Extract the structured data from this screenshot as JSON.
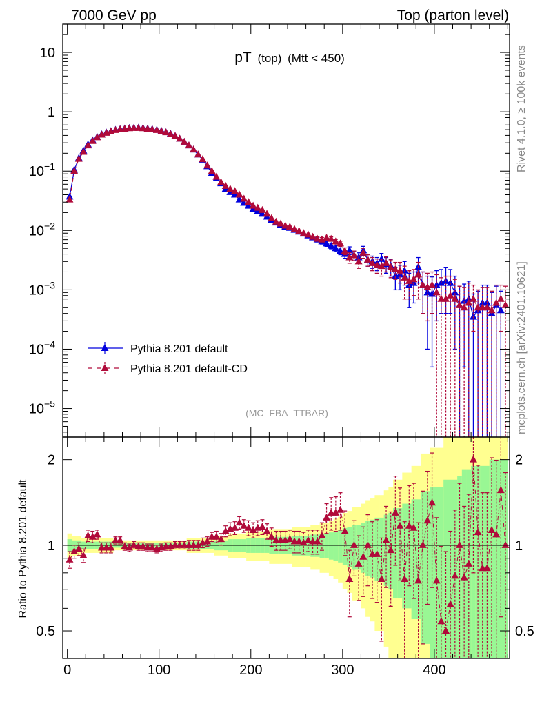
{
  "header": {
    "left": "7000 GeV pp",
    "right": "Top (parton level)"
  },
  "plot_title": {
    "main": "pT",
    "paren": "(top)",
    "cut": "(Mtt < 450)"
  },
  "side_labels": {
    "rivet": "Rivet 4.1.0, ≥ 100k events",
    "site": "mcplots.cern.ch [arXiv:2401.10621]"
  },
  "analysis_tag": "(MC_FBA_TTBAR)",
  "colors": {
    "blue": "#0000dd",
    "red": "#b00a3a",
    "band_inner": "#99f794",
    "band_outer": "#ffff90"
  },
  "chart_data": [
    {
      "type": "line",
      "panel": "main",
      "yscale": "log",
      "xlim": [
        -5,
        482
      ],
      "ylim": [
        3.3e-06,
        30
      ],
      "yticks": [
        {
          "value": 10,
          "label": "10"
        },
        {
          "value": 1,
          "label": "1"
        },
        {
          "value": 0.1,
          "base": "10",
          "exp": "−1"
        },
        {
          "value": 0.01,
          "base": "10",
          "exp": "−2"
        },
        {
          "value": 0.001,
          "base": "10",
          "exp": "−3"
        },
        {
          "value": 0.0001,
          "base": "10",
          "exp": "−4"
        },
        {
          "value": 1e-05,
          "base": "10",
          "exp": "−5"
        }
      ],
      "x": [
        2.5,
        7.5,
        12.5,
        17.5,
        22.5,
        27.5,
        32.5,
        37.5,
        42.5,
        47.5,
        52.5,
        57.5,
        62.5,
        67.5,
        72.5,
        77.5,
        82.5,
        87.5,
        92.5,
        97.5,
        102.5,
        107.5,
        112.5,
        117.5,
        122.5,
        127.5,
        132.5,
        137.5,
        142.5,
        147.5,
        152.5,
        157.5,
        162.5,
        167.5,
        172.5,
        177.5,
        182.5,
        187.5,
        192.5,
        197.5,
        202.5,
        207.5,
        212.5,
        217.5,
        222.5,
        227.5,
        232.5,
        237.5,
        242.5,
        247.5,
        252.5,
        257.5,
        262.5,
        267.5,
        272.5,
        277.5,
        282.5,
        287.5,
        292.5,
        297.5,
        302.5,
        307.5,
        312.5,
        317.5,
        322.5,
        327.5,
        332.5,
        337.5,
        342.5,
        347.5,
        352.5,
        357.5,
        362.5,
        367.5,
        372.5,
        377.5,
        382.5,
        387.5,
        392.5,
        397.5,
        402.5,
        407.5,
        412.5,
        417.5,
        422.5,
        427.5,
        432.5,
        437.5,
        442.5,
        447.5,
        452.5,
        457.5,
        462.5,
        467.5,
        472.5,
        477.5
      ],
      "series": [
        {
          "name": "Pythia 8.201 default",
          "style": "solid",
          "values": [
            0.037,
            0.105,
            0.165,
            0.22,
            0.28,
            0.33,
            0.375,
            0.415,
            0.445,
            0.47,
            0.495,
            0.51,
            0.52,
            0.53,
            0.535,
            0.535,
            0.53,
            0.52,
            0.51,
            0.495,
            0.475,
            0.45,
            0.425,
            0.39,
            0.35,
            0.31,
            0.27,
            0.23,
            0.19,
            0.155,
            0.12,
            0.093,
            0.075,
            0.062,
            0.05,
            0.044,
            0.04,
            0.033,
            0.029,
            0.026,
            0.023,
            0.021,
            0.019,
            0.017,
            0.015,
            0.0135,
            0.0125,
            0.0115,
            0.011,
            0.0102,
            0.0095,
            0.0088,
            0.0082,
            0.0076,
            0.007,
            0.0065,
            0.006,
            0.0055,
            0.005,
            0.0045,
            0.004,
            0.0046,
            0.0038,
            0.0035,
            0.0046,
            0.0032,
            0.003,
            0.0028,
            0.0033,
            0.0027,
            0.0025,
            0.0017,
            0.0018,
            0.0021,
            0.0012,
            0.0013,
            0.0024,
            0.0012,
            0.0009,
            0.00085,
            0.0012,
            0.0013,
            0.0014,
            0.0013,
            0.0009,
            0.00055,
            0.00065,
            0.0007,
            0.00035,
            0.00045,
            0.0006,
            0.0006,
            0.0004,
            0.00055,
            0.00045,
            null
          ],
          "errors": [
            0.002,
            0.004,
            0.005,
            0.006,
            0.007,
            0.008,
            0.008,
            0.009,
            0.009,
            0.009,
            0.01,
            0.01,
            0.01,
            0.01,
            0.01,
            0.01,
            0.01,
            0.01,
            0.01,
            0.01,
            0.009,
            0.009,
            0.009,
            0.008,
            0.008,
            0.007,
            0.007,
            0.006,
            0.005,
            0.004,
            0.004,
            0.003,
            0.003,
            0.002,
            0.002,
            0.002,
            0.002,
            0.0015,
            0.0014,
            0.0013,
            0.0012,
            0.0011,
            0.001,
            0.0009,
            0.0008,
            0.0008,
            0.0007,
            0.0007,
            0.0007,
            0.0007,
            0.0007,
            0.0006,
            0.0006,
            0.0006,
            0.0006,
            0.0006,
            0.0006,
            0.0006,
            0.0006,
            0.0006,
            0.0006,
            0.0007,
            0.0007,
            0.0007,
            0.0008,
            0.0007,
            0.0007,
            0.0007,
            0.0008,
            0.0008,
            0.0008,
            0.0007,
            0.0008,
            0.0009,
            0.0007,
            0.0007,
            0.0011,
            0.0008,
            0.0008,
            0.0008,
            0.0009,
            0.0009,
            0.001,
            0.0009,
            0.0008,
            0.0006,
            0.0006,
            0.0007,
            0.0005,
            0.0005,
            0.0006,
            0.0006,
            0.0005,
            0.0006,
            0.0005,
            null
          ]
        },
        {
          "name": "Pythia 8.201 default-CD",
          "style": "dash-dot",
          "values": [
            0.033,
            0.1,
            0.16,
            0.21,
            0.27,
            0.32,
            0.37,
            0.41,
            0.44,
            0.465,
            0.49,
            0.505,
            0.515,
            0.525,
            0.53,
            0.53,
            0.525,
            0.515,
            0.505,
            0.49,
            0.47,
            0.448,
            0.42,
            0.39,
            0.35,
            0.31,
            0.27,
            0.23,
            0.19,
            0.158,
            0.124,
            0.1,
            0.08,
            0.065,
            0.056,
            0.05,
            0.046,
            0.04,
            0.034,
            0.03,
            0.026,
            0.024,
            0.022,
            0.019,
            0.016,
            0.014,
            0.013,
            0.012,
            0.0115,
            0.0105,
            0.0098,
            0.009,
            0.0085,
            0.0078,
            0.0072,
            0.007,
            0.0075,
            0.0072,
            0.0065,
            0.006,
            0.0045,
            0.0035,
            0.0038,
            0.003,
            0.0042,
            0.0032,
            0.0028,
            0.0026,
            0.0025,
            0.0028,
            0.0024,
            0.0022,
            0.0021,
            0.0016,
            0.0014,
            0.0015,
            0.0018,
            0.0012,
            0.0011,
            0.0012,
            0.0009,
            0.0007,
            0.0007,
            0.0008,
            0.0007,
            0.00055,
            0.0005,
            0.0006,
            0.0007,
            0.0005,
            0.0005,
            0.0005,
            0.00045,
            0.0006,
            0.0007,
            0.00055
          ],
          "errors": [
            0.002,
            0.004,
            0.005,
            0.006,
            0.007,
            0.008,
            0.008,
            0.009,
            0.009,
            0.009,
            0.01,
            0.01,
            0.01,
            0.01,
            0.01,
            0.01,
            0.01,
            0.01,
            0.01,
            0.01,
            0.009,
            0.009,
            0.009,
            0.008,
            0.008,
            0.007,
            0.007,
            0.006,
            0.005,
            0.004,
            0.004,
            0.003,
            0.003,
            0.002,
            0.002,
            0.002,
            0.002,
            0.0015,
            0.0014,
            0.0013,
            0.0012,
            0.0011,
            0.001,
            0.0009,
            0.0008,
            0.0008,
            0.0007,
            0.0007,
            0.0007,
            0.0007,
            0.0007,
            0.0006,
            0.0006,
            0.0006,
            0.0006,
            0.0006,
            0.0006,
            0.0006,
            0.0006,
            0.0006,
            0.0006,
            0.0007,
            0.0007,
            0.0007,
            0.0008,
            0.0007,
            0.0007,
            0.0007,
            0.0008,
            0.0008,
            0.0008,
            0.0007,
            0.0008,
            0.0009,
            0.0007,
            0.0007,
            0.0011,
            0.0008,
            0.0008,
            0.0008,
            0.0009,
            0.0009,
            0.001,
            0.0009,
            0.0008,
            0.0006,
            0.0006,
            0.0007,
            0.0005,
            0.0005,
            0.0006,
            0.0006,
            0.0005,
            0.0006,
            0.0005,
            0.0006
          ]
        }
      ]
    },
    {
      "type": "line",
      "panel": "ratio",
      "ylabel": "Ratio to Pythia 8.201 default",
      "yscale": "log",
      "ylim": [
        0.4,
        2.4
      ],
      "yticks": [
        {
          "value": 2,
          "label": "2"
        },
        {
          "value": 1,
          "label": "1"
        },
        {
          "value": 0.5,
          "label": "0.5"
        }
      ],
      "xticks": [
        {
          "value": 0,
          "label": "0"
        },
        {
          "value": 100,
          "label": "100"
        },
        {
          "value": 200,
          "label": "200"
        },
        {
          "value": 300,
          "label": "300"
        },
        {
          "value": 400,
          "label": "400"
        }
      ],
      "reference": 1,
      "band_inner_halfwidth": [
        0.05,
        0.04,
        0.04,
        0.03,
        0.03,
        0.03,
        0.03,
        0.03,
        0.03,
        0.03,
        0.02,
        0.02,
        0.02,
        0.02,
        0.02,
        0.02,
        0.02,
        0.02,
        0.02,
        0.02,
        0.02,
        0.02,
        0.02,
        0.02,
        0.02,
        0.02,
        0.03,
        0.03,
        0.03,
        0.03,
        0.03,
        0.03,
        0.04,
        0.04,
        0.04,
        0.05,
        0.05,
        0.05,
        0.05,
        0.06,
        0.06,
        0.06,
        0.06,
        0.06,
        0.07,
        0.07,
        0.07,
        0.07,
        0.07,
        0.08,
        0.08,
        0.08,
        0.08,
        0.09,
        0.09,
        0.1,
        0.1,
        0.11,
        0.12,
        0.13,
        0.15,
        0.16,
        0.18,
        0.18,
        0.2,
        0.22,
        0.23,
        0.25,
        0.25,
        0.28,
        0.3,
        0.35,
        0.35,
        0.4,
        0.4,
        0.45,
        0.45,
        0.55,
        0.55,
        0.6,
        0.6,
        0.6,
        0.7,
        0.7,
        0.7,
        0.75,
        0.85,
        0.85,
        0.9,
        0.9,
        0.9,
        0.9,
        1.0,
        1.0,
        1.0,
        1.0
      ],
      "band_outer_halfwidth": [
        0.1,
        0.08,
        0.08,
        0.06,
        0.06,
        0.06,
        0.06,
        0.06,
        0.06,
        0.06,
        0.04,
        0.04,
        0.04,
        0.04,
        0.04,
        0.04,
        0.04,
        0.04,
        0.04,
        0.04,
        0.04,
        0.04,
        0.04,
        0.04,
        0.04,
        0.04,
        0.06,
        0.06,
        0.06,
        0.06,
        0.06,
        0.06,
        0.08,
        0.08,
        0.08,
        0.1,
        0.1,
        0.1,
        0.1,
        0.12,
        0.12,
        0.12,
        0.12,
        0.12,
        0.14,
        0.14,
        0.14,
        0.14,
        0.14,
        0.16,
        0.16,
        0.16,
        0.16,
        0.18,
        0.18,
        0.2,
        0.2,
        0.22,
        0.24,
        0.26,
        0.3,
        0.32,
        0.36,
        0.36,
        0.4,
        0.44,
        0.46,
        0.5,
        0.5,
        0.56,
        0.6,
        0.7,
        0.7,
        0.8,
        0.8,
        0.9,
        0.9,
        1.1,
        1.1,
        1.2,
        1.2,
        1.2,
        1.4,
        1.4,
        1.4,
        1.5,
        1.7,
        1.7,
        1.8,
        1.8,
        1.8,
        1.8,
        2.0,
        2.0,
        2.0,
        2.0
      ],
      "ratio_values": [
        0.89,
        0.95,
        0.97,
        0.92,
        1.08,
        1.07,
        1.09,
        0.98,
        0.98,
        0.98,
        1.04,
        1.04,
        0.99,
        0.98,
        1.0,
        0.99,
        0.99,
        0.98,
        0.98,
        0.97,
        0.98,
        0.99,
        0.99,
        1.0,
        1.0,
        1.0,
        1.0,
        1.0,
        1.0,
        1.02,
        1.03,
        1.07,
        1.07,
        1.05,
        1.12,
        1.14,
        1.15,
        1.2,
        1.17,
        1.15,
        1.13,
        1.15,
        1.16,
        1.12,
        1.07,
        1.04,
        1.04,
        1.04,
        1.05,
        1.03,
        1.03,
        1.02,
        1.04,
        1.03,
        1.03,
        1.08,
        1.25,
        1.3,
        1.3,
        1.33,
        1.12,
        0.76,
        1.0,
        0.86,
        0.91,
        1.0,
        0.93,
        0.93,
        0.76,
        1.04,
        0.96,
        1.3,
        1.17,
        0.76,
        1.17,
        1.15,
        0.75,
        1.0,
        1.22,
        1.41,
        0.75,
        0.54,
        0.5,
        0.62,
        0.78,
        1.0,
        0.77,
        0.86,
        2.0,
        1.11,
        0.83,
        0.83,
        1.13,
        1.09,
        1.56,
        1.0
      ],
      "ratio_errors": [
        0.06,
        0.05,
        0.05,
        0.05,
        0.05,
        0.05,
        0.04,
        0.04,
        0.04,
        0.04,
        0.03,
        0.03,
        0.03,
        0.03,
        0.03,
        0.03,
        0.03,
        0.03,
        0.03,
        0.03,
        0.03,
        0.03,
        0.03,
        0.03,
        0.03,
        0.03,
        0.04,
        0.04,
        0.04,
        0.04,
        0.04,
        0.04,
        0.05,
        0.05,
        0.05,
        0.06,
        0.06,
        0.06,
        0.06,
        0.07,
        0.07,
        0.07,
        0.07,
        0.07,
        0.08,
        0.08,
        0.08,
        0.08,
        0.08,
        0.09,
        0.09,
        0.09,
        0.09,
        0.1,
        0.1,
        0.12,
        0.15,
        0.17,
        0.18,
        0.2,
        0.2,
        0.2,
        0.22,
        0.22,
        0.25,
        0.28,
        0.28,
        0.3,
        0.3,
        0.33,
        0.35,
        0.45,
        0.42,
        0.45,
        0.45,
        0.5,
        0.45,
        0.55,
        0.6,
        0.7,
        0.5,
        0.45,
        0.45,
        0.5,
        0.55,
        0.65,
        0.6,
        0.65,
        1.2,
        0.8,
        0.7,
        0.7,
        0.9,
        0.9,
        1.0,
        0.8
      ]
    }
  ]
}
